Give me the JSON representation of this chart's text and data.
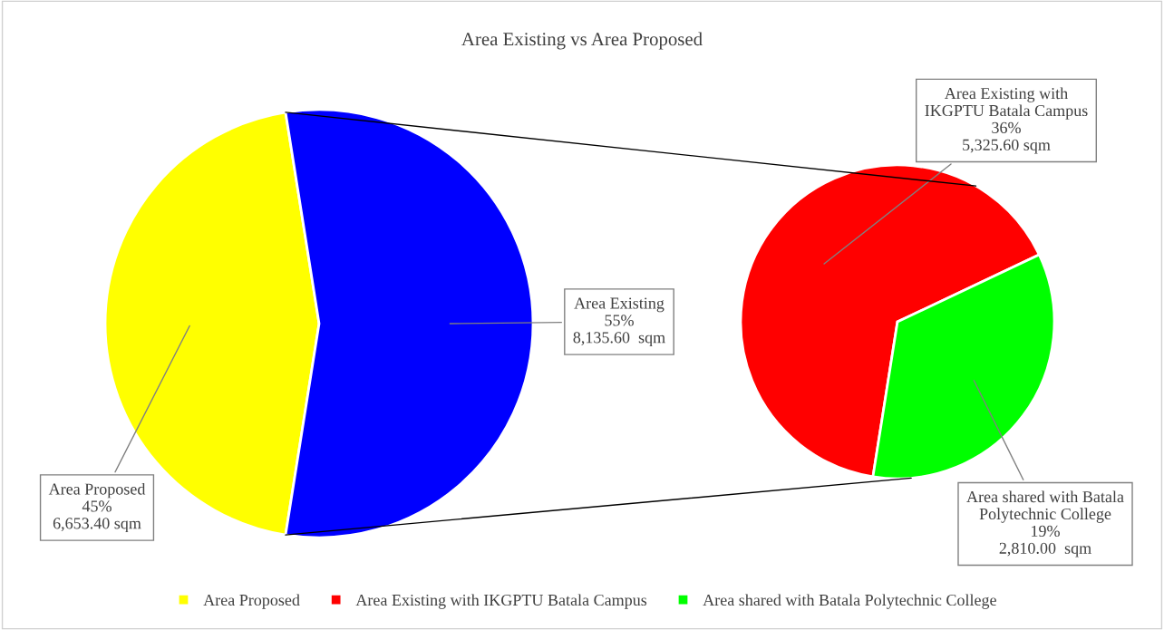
{
  "chart_data": [
    {
      "type": "pie",
      "title": "Area Existing vs Area Proposed",
      "categories": [
        "Area Proposed",
        null
      ],
      "values": [
        6653.4,
        8135.6
      ],
      "colors": [
        "#ffff00",
        "#0000ff"
      ],
      "value_labels": [
        "Area Proposed\n45%\n6,653.40 sqm",
        "Area Existing\n55%\n8,135.60  sqm"
      ],
      "legend": "bottom"
    },
    {
      "type": "pie",
      "categories": [
        "Area Existing with IKGPTU Batala Campus",
        "Area shared with Batala Polytechnic College"
      ],
      "values": [
        5325.6,
        2810.0
      ],
      "colors": [
        "#ff0000",
        "#00ff00"
      ],
      "value_labels": [
        "Area Existing with\nIKGPTU Batala Campus\n36%\n5,325.60 sqm",
        "Area shared with Batala\nPolytechnic College\n19%\n2,810.00  sqm"
      ],
      "legend": "bottom"
    }
  ]
}
